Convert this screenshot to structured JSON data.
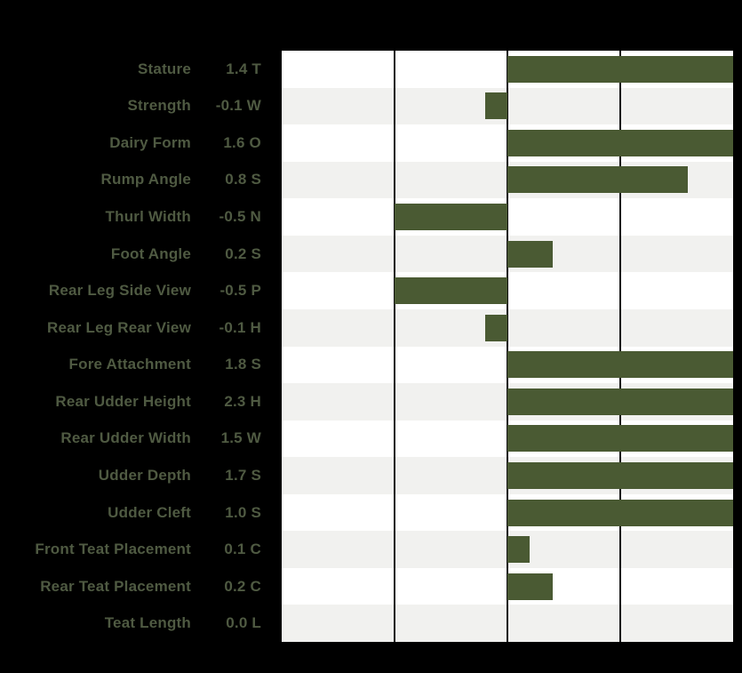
{
  "chart_data": {
    "type": "bar",
    "orientation": "horizontal",
    "title": "",
    "xlabel": "",
    "ylabel": "",
    "xlim": [
      -1.0,
      1.0
    ],
    "gridline_values": [
      -0.5,
      0,
      0.5
    ],
    "bars_clipped_at": 1.0,
    "legend": "none",
    "rows": [
      {
        "trait": "Stature",
        "value": 1.4,
        "code": "T",
        "display": "1.4 T"
      },
      {
        "trait": "Strength",
        "value": -0.1,
        "code": "W",
        "display": "-0.1 W"
      },
      {
        "trait": "Dairy Form",
        "value": 1.6,
        "code": "O",
        "display": "1.6 O"
      },
      {
        "trait": "Rump Angle",
        "value": 0.8,
        "code": "S",
        "display": "0.8 S"
      },
      {
        "trait": "Thurl Width",
        "value": -0.5,
        "code": "N",
        "display": "-0.5 N"
      },
      {
        "trait": "Foot Angle",
        "value": 0.2,
        "code": "S",
        "display": "0.2 S"
      },
      {
        "trait": "Rear Leg Side View",
        "value": -0.5,
        "code": "P",
        "display": "-0.5 P"
      },
      {
        "trait": "Rear Leg Rear View",
        "value": -0.1,
        "code": "H",
        "display": "-0.1 H"
      },
      {
        "trait": "Fore Attachment",
        "value": 1.8,
        "code": "S",
        "display": "1.8 S"
      },
      {
        "trait": "Rear Udder Height",
        "value": 2.3,
        "code": "H",
        "display": "2.3 H"
      },
      {
        "trait": "Rear Udder Width",
        "value": 1.5,
        "code": "W",
        "display": "1.5 W"
      },
      {
        "trait": "Udder Depth",
        "value": 1.7,
        "code": "S",
        "display": "1.7 S"
      },
      {
        "trait": "Udder Cleft",
        "value": 1.0,
        "code": "S",
        "display": "1.0 S"
      },
      {
        "trait": "Front Teat Placement",
        "value": 0.1,
        "code": "C",
        "display": "0.1 C"
      },
      {
        "trait": "Rear Teat Placement",
        "value": 0.2,
        "code": "C",
        "display": "0.2 C"
      },
      {
        "trait": "Teat Length",
        "value": 0.0,
        "code": "L",
        "display": "0.0 L"
      }
    ],
    "colors": {
      "background": "#000000",
      "bar": "#4a5a33",
      "stripe_odd": "#ffffff",
      "stripe_even": "#f1f1ef",
      "gridline": "#111111",
      "label_text": "#4f5a42"
    }
  }
}
